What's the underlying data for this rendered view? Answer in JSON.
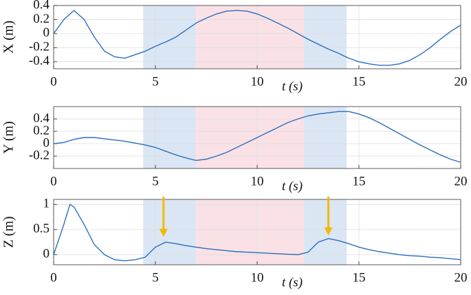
{
  "chart_data": [
    {
      "type": "line",
      "ylabel": "X (m)",
      "xlabel": "t (s)",
      "xlim": [
        0,
        20
      ],
      "xticks": [
        0,
        5,
        10,
        15,
        20
      ],
      "ylim": [
        -0.5,
        0.4
      ],
      "yticks": [
        -0.4,
        -0.2,
        0,
        0.2,
        0.4
      ],
      "grid": true,
      "bands": [
        {
          "x0": 4.4,
          "x1": 7.0,
          "color": "#dbe6f4"
        },
        {
          "x0": 7.0,
          "x1": 12.3,
          "color": "#f9e1e6"
        },
        {
          "x0": 12.3,
          "x1": 14.4,
          "color": "#dbe6f4"
        }
      ],
      "x": [
        0,
        0.5,
        1,
        1.5,
        2,
        2.5,
        3,
        3.5,
        4,
        4.5,
        5,
        5.5,
        6,
        6.5,
        7,
        7.5,
        8,
        8.5,
        9,
        9.5,
        10,
        10.5,
        11,
        11.5,
        12,
        12.5,
        13,
        13.5,
        14,
        14.5,
        15,
        15.5,
        16,
        16.5,
        17,
        17.5,
        18,
        18.5,
        19,
        19.5,
        20
      ],
      "series": [
        {
          "color": "#2a6ebb",
          "values": [
            0,
            0.2,
            0.33,
            0.2,
            -0.05,
            -0.25,
            -0.33,
            -0.35,
            -0.3,
            -0.25,
            -0.18,
            -0.12,
            -0.05,
            0.05,
            0.15,
            0.22,
            0.28,
            0.32,
            0.33,
            0.32,
            0.28,
            0.22,
            0.15,
            0.08,
            0,
            -0.08,
            -0.15,
            -0.22,
            -0.28,
            -0.35,
            -0.4,
            -0.43,
            -0.45,
            -0.45,
            -0.43,
            -0.38,
            -0.3,
            -0.2,
            -0.08,
            0.03,
            0.12
          ]
        }
      ]
    },
    {
      "type": "line",
      "ylabel": "Y (m)",
      "xlabel": "t (s)",
      "xlim": [
        0,
        20
      ],
      "xticks": [
        0,
        5,
        10,
        15,
        20
      ],
      "ylim": [
        -0.4,
        0.6
      ],
      "yticks": [
        -0.2,
        0,
        0.2,
        0.4
      ],
      "grid": true,
      "bands": [
        {
          "x0": 4.4,
          "x1": 7.0,
          "color": "#dbe6f4"
        },
        {
          "x0": 7.0,
          "x1": 12.3,
          "color": "#f9e1e6"
        },
        {
          "x0": 12.3,
          "x1": 14.4,
          "color": "#dbe6f4"
        }
      ],
      "x": [
        0,
        0.5,
        1,
        1.5,
        2,
        2.5,
        3,
        3.5,
        4,
        4.5,
        5,
        5.5,
        6,
        6.5,
        7,
        7.5,
        8,
        8.5,
        9,
        9.5,
        10,
        10.5,
        11,
        11.5,
        12,
        12.5,
        13,
        13.5,
        14,
        14.5,
        15,
        15.5,
        16,
        16.5,
        17,
        17.5,
        18,
        18.5,
        19,
        19.5,
        20
      ],
      "series": [
        {
          "color": "#2a6ebb",
          "values": [
            0,
            0.02,
            0.07,
            0.1,
            0.1,
            0.08,
            0.06,
            0.04,
            0.01,
            -0.02,
            -0.06,
            -0.12,
            -0.18,
            -0.23,
            -0.27,
            -0.25,
            -0.2,
            -0.14,
            -0.06,
            0.02,
            0.1,
            0.18,
            0.26,
            0.34,
            0.4,
            0.45,
            0.48,
            0.5,
            0.52,
            0.52,
            0.48,
            0.42,
            0.34,
            0.25,
            0.16,
            0.07,
            -0.02,
            -0.1,
            -0.18,
            -0.25,
            -0.3
          ]
        }
      ]
    },
    {
      "type": "line",
      "ylabel": "Z (m)",
      "xlabel": "t (s)",
      "xlim": [
        0,
        20
      ],
      "xticks": [
        0,
        5,
        10,
        15,
        20
      ],
      "ylim": [
        -0.2,
        1.1
      ],
      "yticks": [
        0,
        0.5,
        1
      ],
      "grid": true,
      "bands": [
        {
          "x0": 4.4,
          "x1": 7.0,
          "color": "#dbe6f4"
        },
        {
          "x0": 7.0,
          "x1": 12.3,
          "color": "#f9e1e6"
        },
        {
          "x0": 12.3,
          "x1": 14.4,
          "color": "#dbe6f4"
        }
      ],
      "arrows": [
        {
          "x": 5.4,
          "y": 0.35,
          "color": "#f5b800"
        },
        {
          "x": 13.5,
          "y": 0.38,
          "color": "#f5b800"
        }
      ],
      "x": [
        0,
        0.5,
        0.8,
        1,
        1.5,
        2,
        2.5,
        3,
        3.5,
        4,
        4.5,
        5,
        5.5,
        6,
        6.5,
        7,
        7.5,
        8,
        8.5,
        9,
        9.5,
        10,
        10.5,
        11,
        11.5,
        12,
        12.5,
        13,
        13.5,
        14,
        14.5,
        15,
        15.5,
        16,
        16.5,
        17,
        17.5,
        18,
        18.5,
        19,
        19.5,
        20
      ],
      "series": [
        {
          "color": "#2a6ebb",
          "values": [
            0,
            0.6,
            1.0,
            0.95,
            0.6,
            0.2,
            0,
            -0.1,
            -0.12,
            -0.1,
            -0.05,
            0.15,
            0.25,
            0.22,
            0.18,
            0.15,
            0.12,
            0.1,
            0.08,
            0.06,
            0.05,
            0.04,
            0.03,
            0.02,
            0.01,
            0,
            0.05,
            0.25,
            0.32,
            0.28,
            0.22,
            0.15,
            0.1,
            0.06,
            0.03,
            0,
            -0.02,
            -0.03,
            -0.05,
            -0.06,
            -0.08,
            -0.1
          ]
        }
      ]
    }
  ]
}
